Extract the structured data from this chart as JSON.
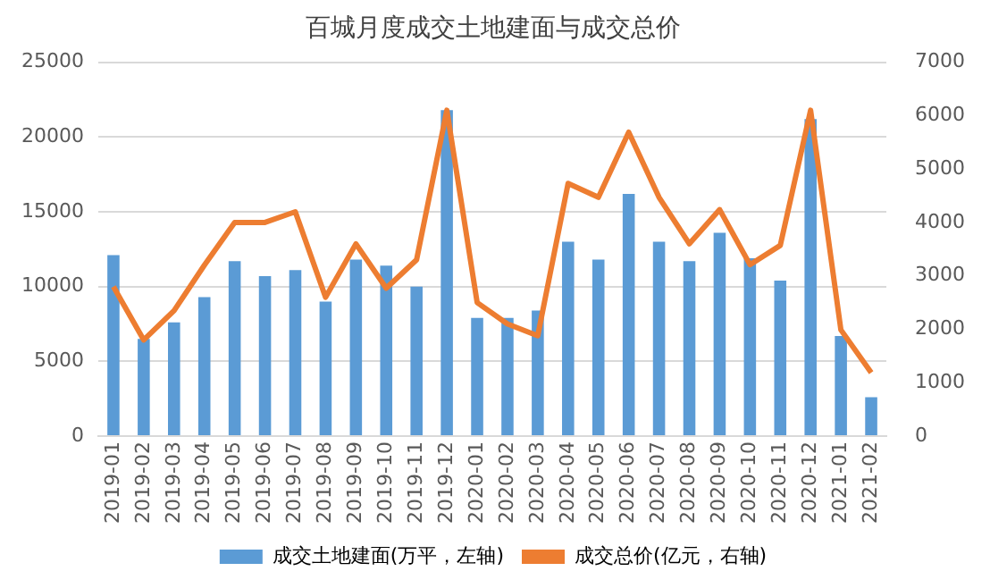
{
  "chart_data": {
    "type": "bar",
    "title": "百城月度成交土地建面与成交总价",
    "categories": [
      "2019-01",
      "2019-02",
      "2019-03",
      "2019-04",
      "2019-05",
      "2019-06",
      "2019-07",
      "2019-08",
      "2019-09",
      "2019-10",
      "2019-11",
      "2019-12",
      "2020-01",
      "2020-02",
      "2020-03",
      "2020-04",
      "2020-05",
      "2020-06",
      "2020-07",
      "2020-08",
      "2020-09",
      "2020-10",
      "2020-11",
      "2020-12",
      "2021-01",
      "2021-02"
    ],
    "series": [
      {
        "name": "成交土地建面(万平，左轴)",
        "color": "#5b9bd5",
        "values": [
          12100,
          6500,
          7600,
          9300,
          11700,
          10700,
          11100,
          9000,
          11800,
          11400,
          10000,
          21800,
          7900,
          7900,
          8400,
          13000,
          11800,
          16200,
          13000,
          11700,
          13600,
          11900,
          10400,
          21200,
          6700,
          2600
        ]
      },
      {
        "name": "成交总价(亿元，右轴)",
        "type": "line",
        "axis": "y2",
        "color": "#ed7d31",
        "values": [
          2800,
          1800,
          2350,
          3200,
          4000,
          4000,
          4200,
          2600,
          3600,
          2770,
          3300,
          6100,
          2500,
          2100,
          1880,
          4730,
          4470,
          5690,
          4470,
          3600,
          4240,
          3210,
          3570,
          6100,
          1990,
          1190
        ]
      }
    ],
    "ylim": [
      0,
      25000
    ],
    "yticks": [
      0,
      5000,
      10000,
      15000,
      20000,
      25000
    ],
    "y2lim": [
      0,
      7000
    ],
    "y2ticks": [
      0,
      1000,
      2000,
      3000,
      4000,
      5000,
      6000,
      7000
    ],
    "grid": "y",
    "legend": "bottom",
    "marker": "none"
  }
}
